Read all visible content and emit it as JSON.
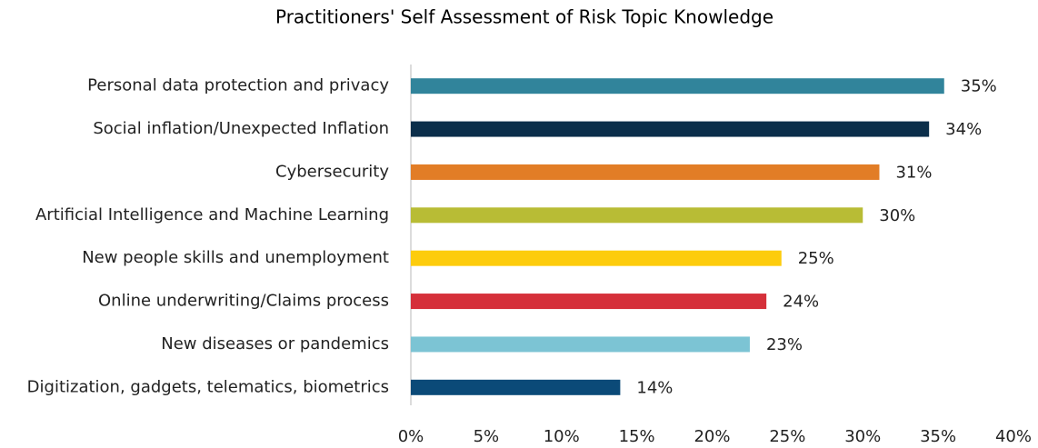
{
  "chart_data": {
    "type": "barh",
    "title": "Practitioners' Self Assessment of Risk Topic Knowledge",
    "categories": [
      "Personal data protection and privacy",
      "Social inflation/Unexpected Inflation",
      "Cybersecurity",
      "Artificial Intelligence and Machine Learning",
      "New people skills and unemployment",
      "Online underwriting/Claims process",
      "New diseases or pandemics",
      "Digitization, gadgets, telematics, biometrics"
    ],
    "values": [
      35.4,
      34.4,
      31.1,
      30.0,
      24.6,
      23.6,
      22.5,
      13.9
    ],
    "value_labels": [
      "35%",
      "34%",
      "31%",
      "30%",
      "25%",
      "24%",
      "23%",
      "14%"
    ],
    "colors": [
      "#31849b",
      "#0b2e4a",
      "#e27d26",
      "#b8bc35",
      "#fdcc0d",
      "#d5303a",
      "#7cc4d4",
      "#0b4a78"
    ],
    "xlim": [
      0,
      40
    ],
    "xticks": [
      {
        "value": 0,
        "label": "0%"
      },
      {
        "value": 5,
        "label": "5%"
      },
      {
        "value": 10,
        "label": "10%"
      },
      {
        "value": 15,
        "label": "15%"
      },
      {
        "value": 20,
        "label": "20%"
      },
      {
        "value": 25,
        "label": "25%"
      },
      {
        "value": 30,
        "label": "30%"
      },
      {
        "value": 35,
        "label": "35%"
      },
      {
        "value": 40,
        "label": "40%"
      }
    ],
    "grid": false
  }
}
